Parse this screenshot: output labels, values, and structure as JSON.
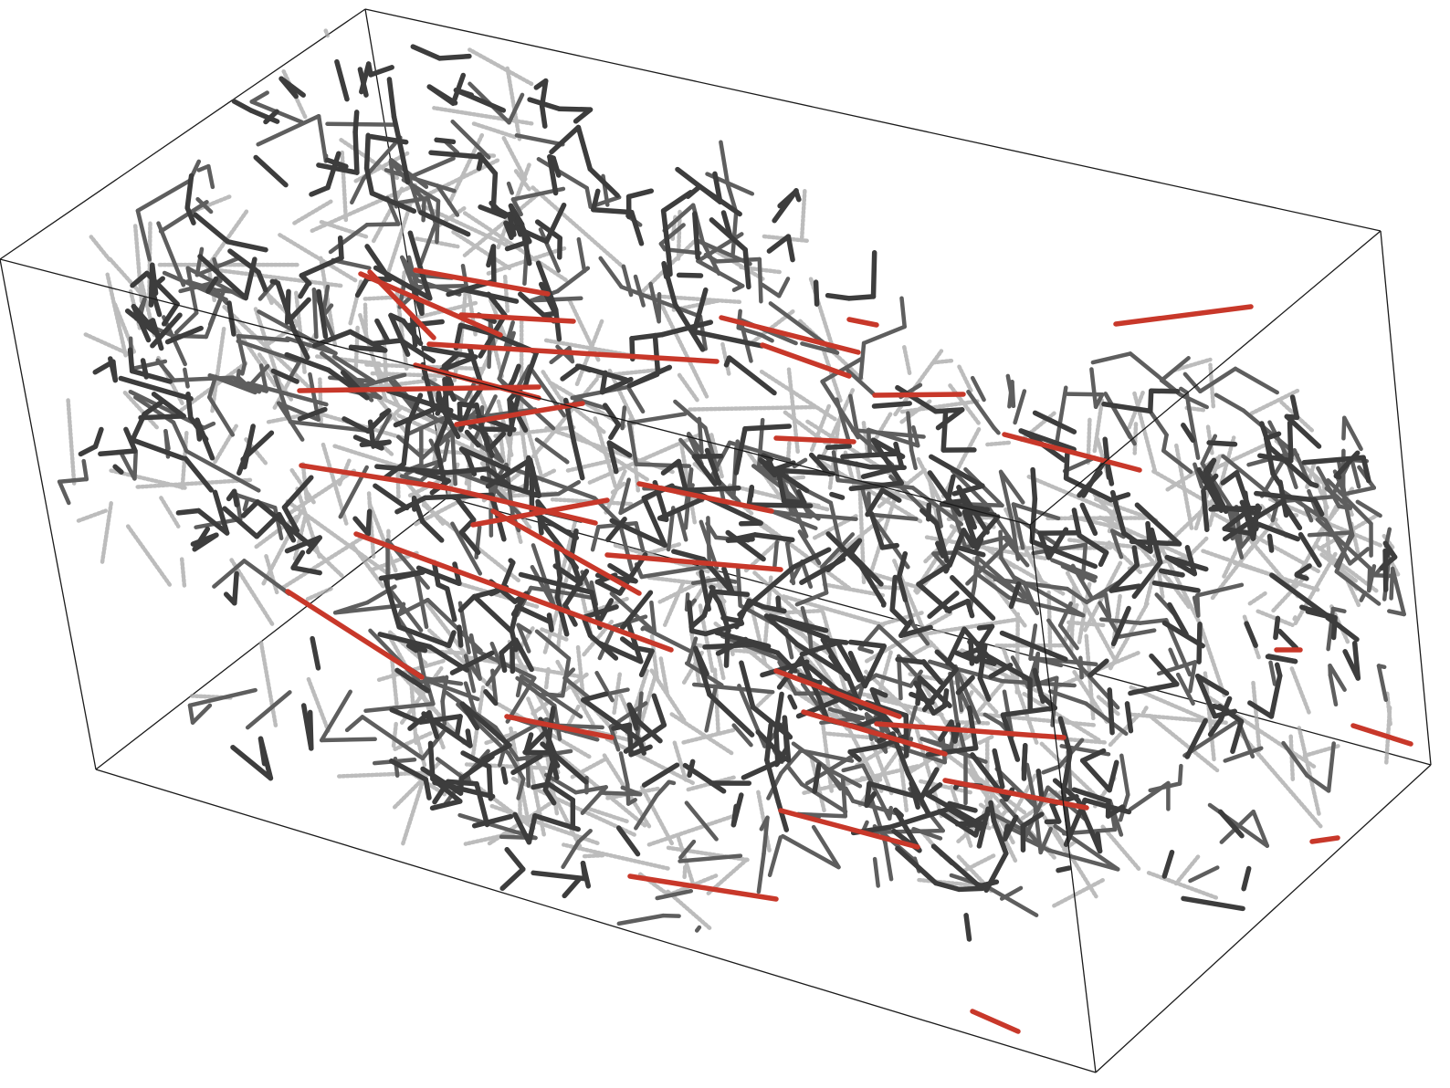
{
  "figure": {
    "kind": "3d-fiber-network",
    "background": "#ffffff",
    "colors": {
      "box_edges": "#1a1a1a",
      "fiber_dark": "#3d3d3d",
      "fiber_mid": "#5e5e5e",
      "fiber_light": "#a6a6a6",
      "highlighted_fiber": "#c8382a"
    },
    "legend": null,
    "labels": []
  }
}
